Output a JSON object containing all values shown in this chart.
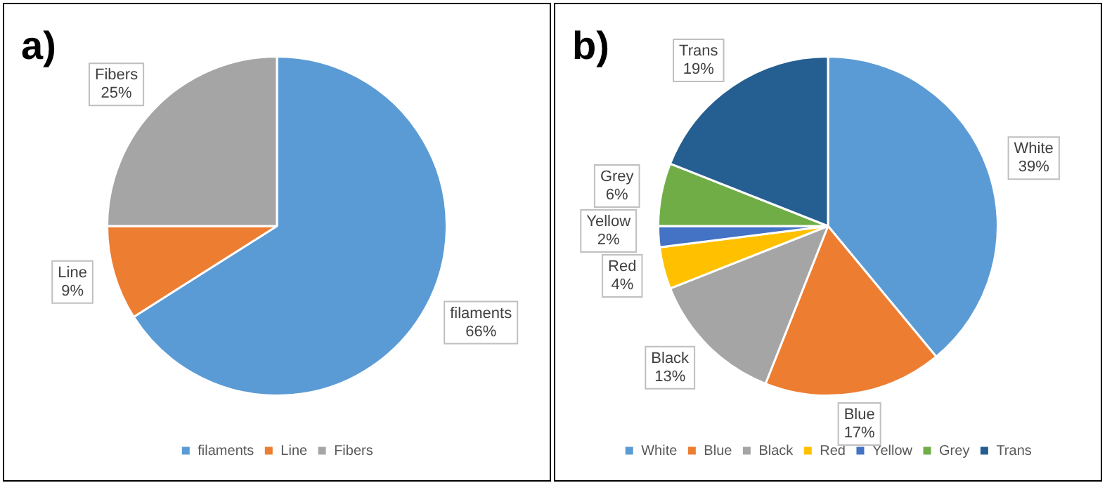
{
  "chart_data": [
    {
      "type": "pie",
      "title": "a)",
      "categories": [
        "filaments",
        "Line",
        "Fibers"
      ],
      "values": [
        66,
        9,
        25
      ],
      "value_labels": [
        "66%",
        "9%",
        "25%"
      ],
      "colors": [
        "#5b9bd5",
        "#ed7d31",
        "#a5a5a5"
      ],
      "legend": "bottom"
    },
    {
      "type": "pie",
      "title": "b)",
      "categories": [
        "White",
        "Blue",
        "Black",
        "Red",
        "Yellow",
        "Grey",
        "Trans"
      ],
      "values": [
        39,
        17,
        13,
        4,
        2,
        6,
        19
      ],
      "value_labels": [
        "39%",
        "17%",
        "13%",
        "4%",
        "2%",
        "6%",
        "19%"
      ],
      "colors": [
        "#5b9bd5",
        "#ed7d31",
        "#a5a5a5",
        "#ffc000",
        "#4472c4",
        "#70ad47",
        "#255e91"
      ],
      "legend": "bottom"
    }
  ]
}
